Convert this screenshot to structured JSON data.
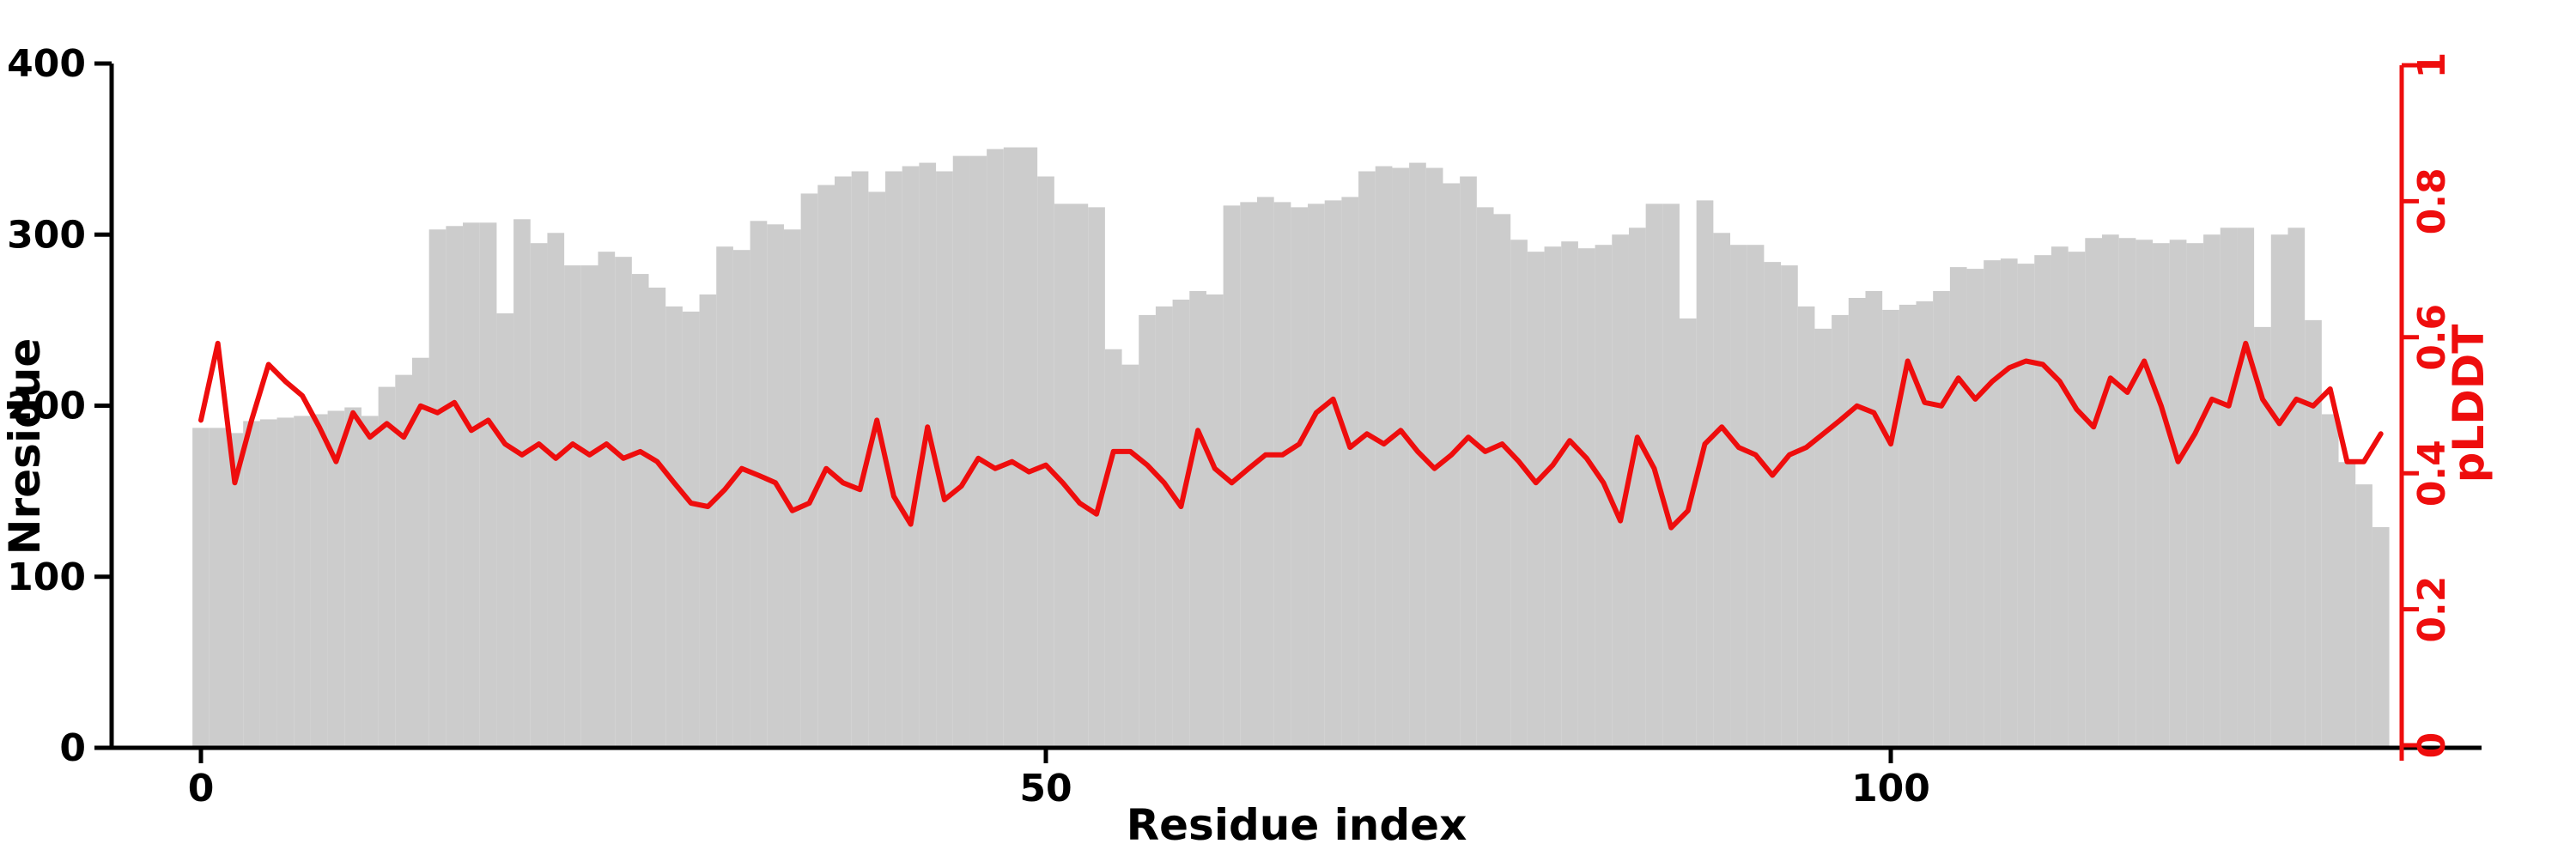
{
  "chart_data": {
    "type": "bar",
    "description": "Per-residue barplot (Nresidue, gray bars, left axis) with overlaid pLDDT line (red, right axis) versus residue index",
    "x_axis": {
      "label": "Residue index",
      "ticks": [
        0,
        50,
        100
      ],
      "tick_labels": [
        "0",
        "50",
        "100"
      ],
      "range": [
        0,
        130
      ]
    },
    "left_axis": {
      "label": "Nresidue",
      "ticks": [
        0,
        100,
        200,
        300,
        400
      ],
      "tick_labels": [
        "0",
        "100",
        "200",
        "300",
        "400"
      ],
      "range": [
        0,
        400
      ]
    },
    "right_axis": {
      "label": "pLDDT",
      "ticks": [
        0,
        0.2,
        0.4,
        0.6,
        0.8,
        1
      ],
      "tick_labels": [
        "0",
        "0.2",
        "0.4",
        "0.6",
        "0.8",
        "1"
      ],
      "range": [
        0,
        1
      ]
    },
    "legend": "none",
    "grid": false,
    "colors": {
      "bar": "#cccccc",
      "line": "#ee0d0d",
      "axis": "#000000",
      "right_axis": "#ee0d0d",
      "background": "#ffffff"
    },
    "categories": [
      0,
      1,
      2,
      3,
      4,
      5,
      6,
      7,
      8,
      9,
      10,
      11,
      12,
      13,
      14,
      15,
      16,
      17,
      18,
      19,
      20,
      21,
      22,
      23,
      24,
      25,
      26,
      27,
      28,
      29,
      30,
      31,
      32,
      33,
      34,
      35,
      36,
      37,
      38,
      39,
      40,
      41,
      42,
      43,
      44,
      45,
      46,
      47,
      48,
      49,
      50,
      51,
      52,
      53,
      54,
      55,
      56,
      57,
      58,
      59,
      60,
      61,
      62,
      63,
      64,
      65,
      66,
      67,
      68,
      69,
      70,
      71,
      72,
      73,
      74,
      75,
      76,
      77,
      78,
      79,
      80,
      81,
      82,
      83,
      84,
      85,
      86,
      87,
      88,
      89,
      90,
      91,
      92,
      93,
      94,
      95,
      96,
      97,
      98,
      99,
      100,
      101,
      102,
      103,
      104,
      105,
      106,
      107,
      108,
      109,
      110,
      111,
      112,
      113,
      114,
      115,
      116,
      117,
      118,
      119,
      120,
      121,
      122,
      123,
      124,
      125,
      126,
      127,
      128,
      129
    ],
    "series": [
      {
        "name": "Nresidue",
        "type": "bar",
        "axis": "left",
        "values": [
          187,
          187,
          184,
          191,
          192,
          193,
          194,
          195,
          197,
          199,
          194,
          211,
          218,
          228,
          303,
          305,
          307,
          307,
          254,
          309,
          295,
          301,
          282,
          282,
          290,
          287,
          277,
          269,
          258,
          255,
          265,
          293,
          291,
          308,
          306,
          303,
          324,
          329,
          334,
          337,
          325,
          337,
          340,
          342,
          337,
          346,
          346,
          350,
          351,
          351,
          334,
          318,
          318,
          316,
          233,
          224,
          253,
          258,
          262,
          267,
          265,
          317,
          319,
          322,
          319,
          316,
          318,
          320,
          322,
          337,
          340,
          339,
          342,
          339,
          330,
          334,
          316,
          312,
          297,
          290,
          293,
          296,
          292,
          294,
          300,
          304,
          318,
          318,
          251,
          320,
          301,
          294,
          294,
          284,
          282,
          258,
          245,
          253,
          263,
          267,
          256,
          259,
          261,
          267,
          281,
          280,
          285,
          286,
          283,
          288,
          293,
          290,
          298,
          300,
          298,
          297,
          295,
          297,
          295,
          300,
          304,
          304,
          246,
          300,
          304,
          250,
          195,
          167,
          154,
          129
        ]
      },
      {
        "name": "pLDDT",
        "type": "line",
        "axis": "right",
        "values": [
          0.478,
          0.591,
          0.386,
          0.478,
          0.56,
          0.535,
          0.514,
          0.468,
          0.417,
          0.489,
          0.453,
          0.473,
          0.453,
          0.499,
          0.489,
          0.504,
          0.463,
          0.478,
          0.443,
          0.427,
          0.443,
          0.422,
          0.443,
          0.427,
          0.443,
          0.422,
          0.432,
          0.417,
          0.386,
          0.356,
          0.351,
          0.376,
          0.407,
          0.397,
          0.386,
          0.345,
          0.356,
          0.407,
          0.386,
          0.376,
          0.478,
          0.366,
          0.325,
          0.468,
          0.361,
          0.381,
          0.422,
          0.407,
          0.417,
          0.402,
          0.412,
          0.386,
          0.356,
          0.34,
          0.432,
          0.432,
          0.412,
          0.386,
          0.351,
          0.463,
          0.407,
          0.386,
          0.407,
          0.427,
          0.427,
          0.443,
          0.489,
          0.509,
          0.438,
          0.458,
          0.443,
          0.463,
          0.432,
          0.407,
          0.427,
          0.453,
          0.432,
          0.443,
          0.417,
          0.386,
          0.412,
          0.448,
          0.422,
          0.386,
          0.33,
          0.453,
          0.407,
          0.32,
          0.345,
          0.443,
          0.468,
          0.438,
          0.427,
          0.397,
          0.427,
          0.438,
          0.458,
          0.478,
          0.499,
          0.489,
          0.443,
          0.565,
          0.504,
          0.499,
          0.54,
          0.509,
          0.535,
          0.555,
          0.565,
          0.56,
          0.535,
          0.494,
          0.468,
          0.54,
          0.519,
          0.565,
          0.499,
          0.417,
          0.458,
          0.509,
          0.499,
          0.591,
          0.509,
          0.473,
          0.509,
          0.499,
          0.524,
          0.417,
          0.417,
          0.458
        ]
      }
    ]
  }
}
